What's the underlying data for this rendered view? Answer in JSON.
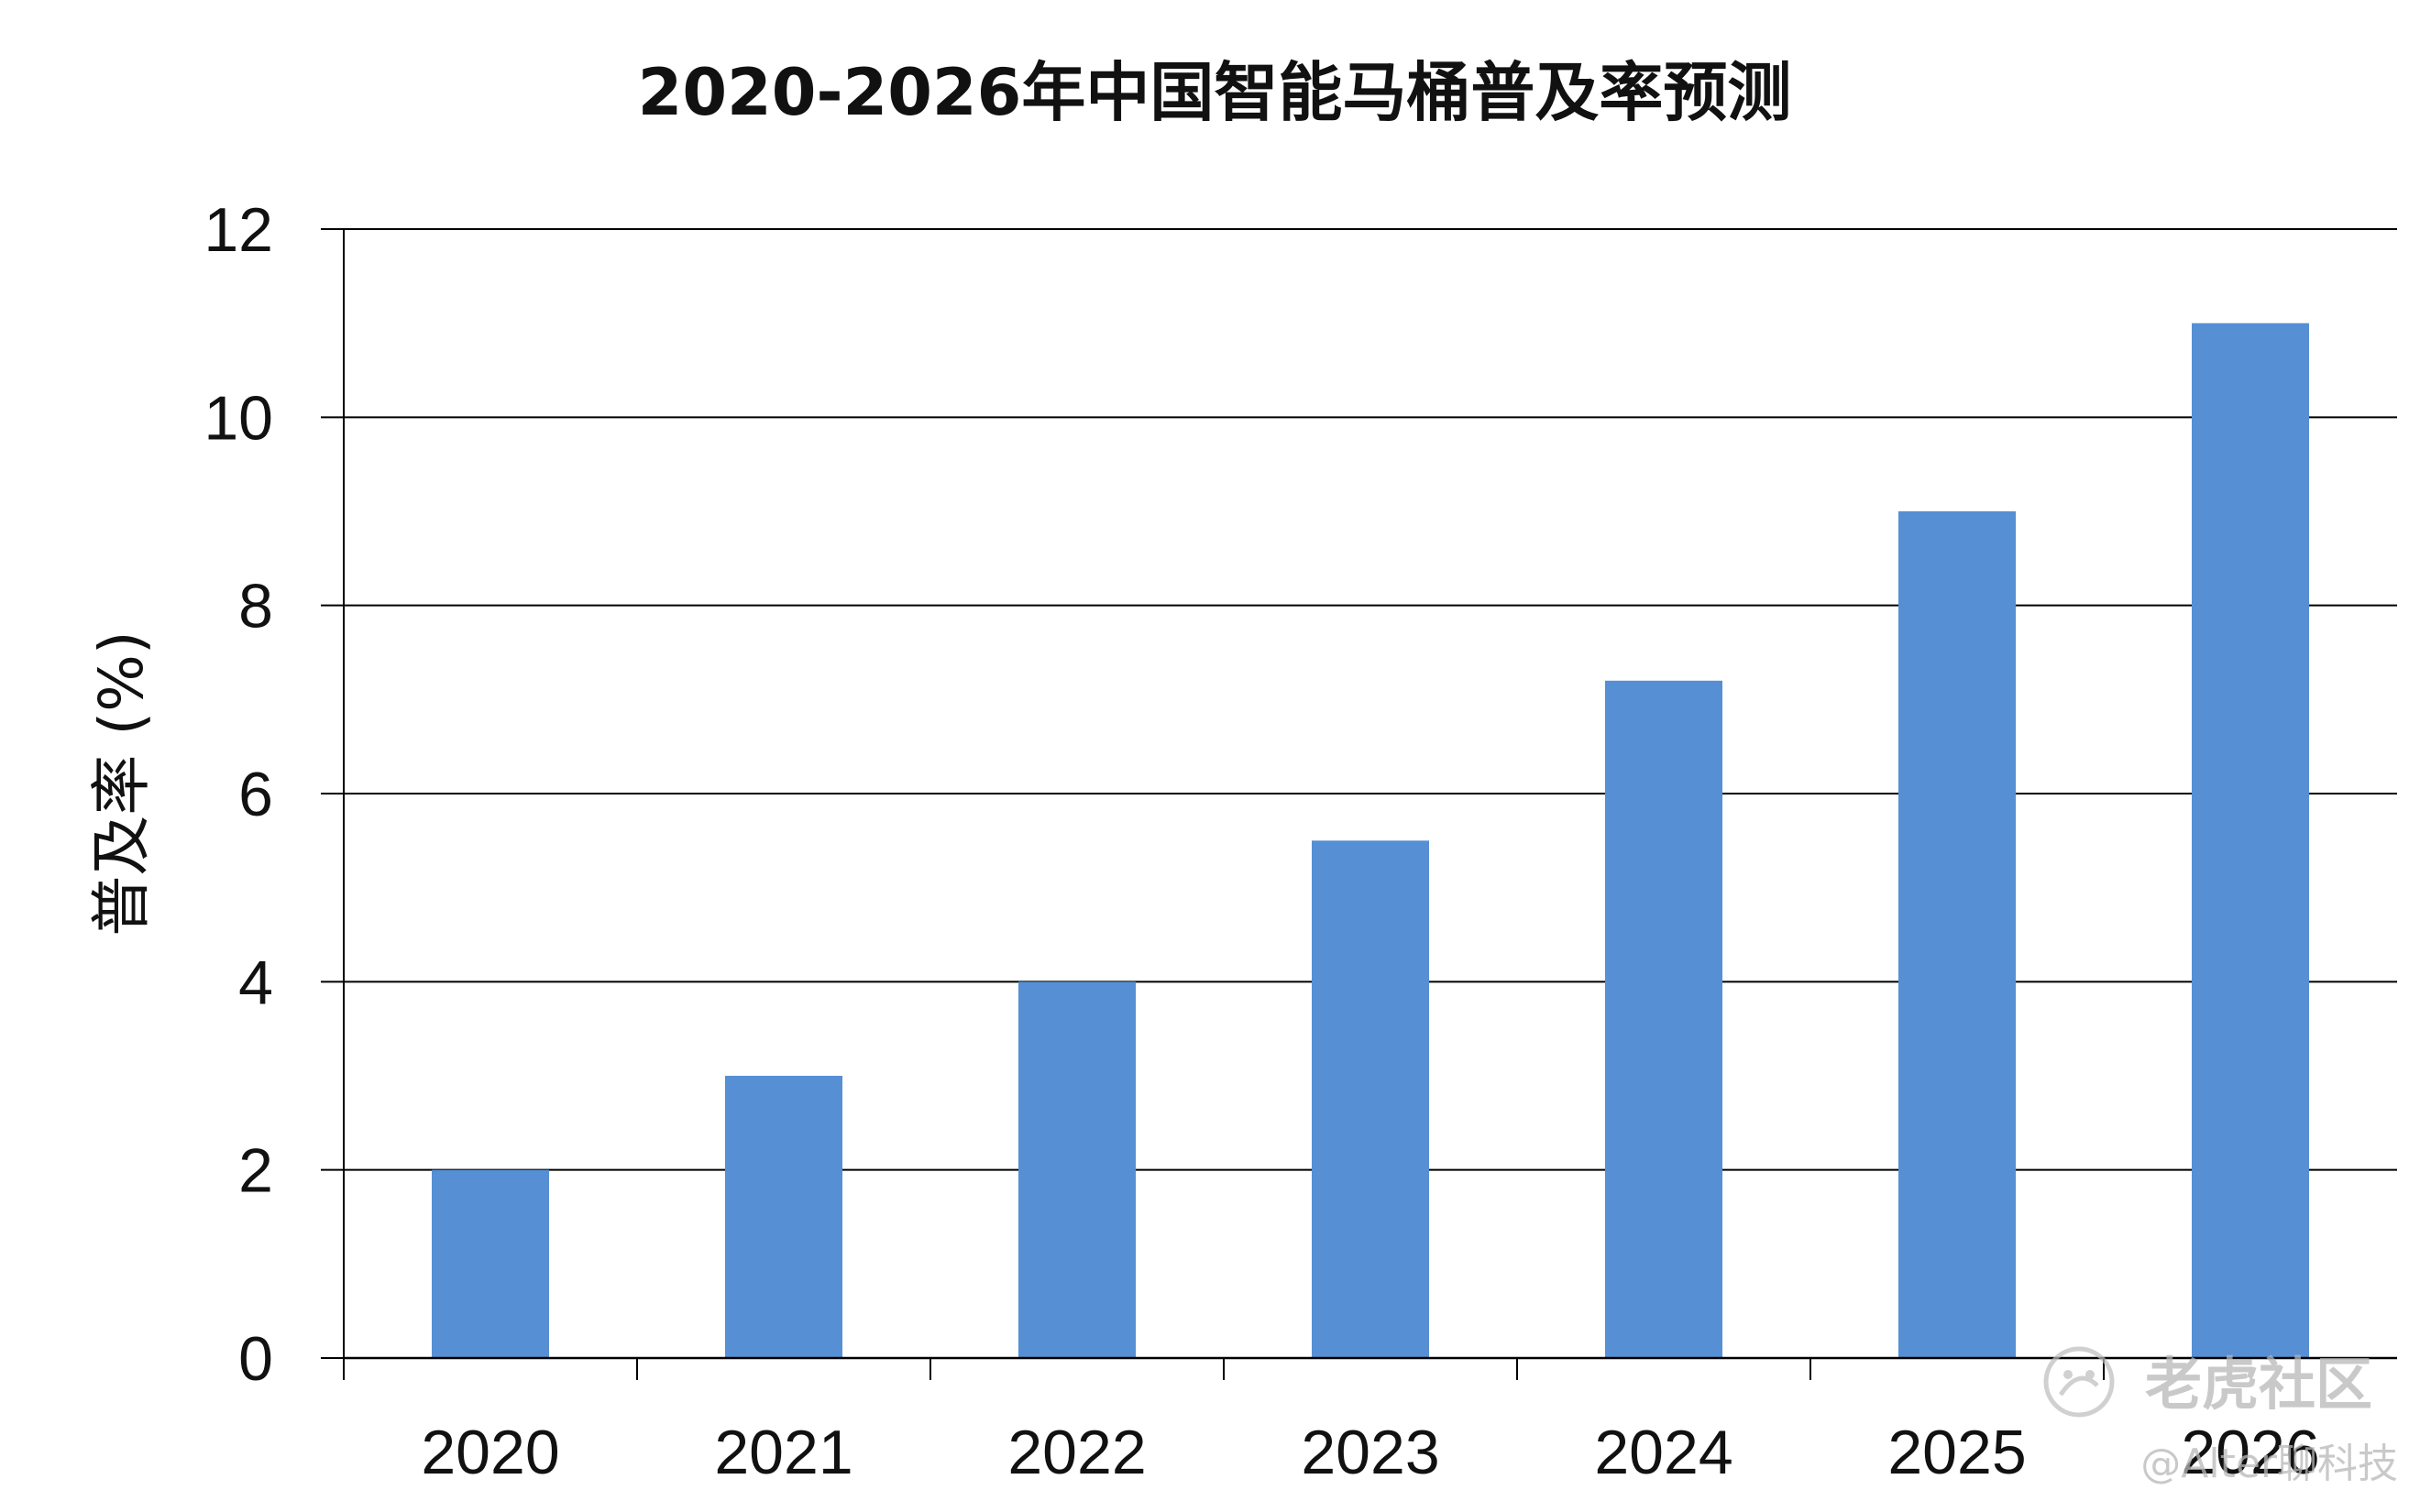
{
  "chart_data": {
    "type": "bar",
    "title": "2020-2026年中国智能马桶普及率预测",
    "ylabel": "普及率 (%)",
    "xlabel": "",
    "categories": [
      "2020",
      "2021",
      "2022",
      "2023",
      "2024",
      "2025",
      "2026"
    ],
    "values": [
      2,
      3,
      4,
      5.5,
      7.2,
      9,
      11
    ],
    "ylim": [
      0,
      12
    ],
    "yticks": [
      "0",
      "2",
      "4",
      "6",
      "8",
      "10",
      "12"
    ],
    "grid": true,
    "legend": "none",
    "bar_color": "#568fd4"
  },
  "watermark": {
    "site_name": "老虎社区",
    "author": "@Alter聊科技",
    "color": "#b8b8b8"
  }
}
